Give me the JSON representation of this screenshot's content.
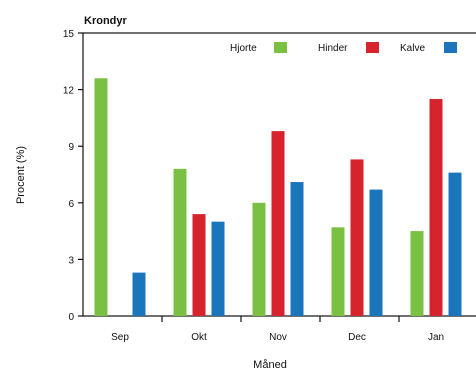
{
  "chart_data": {
    "type": "bar",
    "title": "Krondyr",
    "xlabel": "Måned",
    "ylabel": "Procent (%)",
    "categories": [
      "Sep",
      "Okt",
      "Nov",
      "Dec",
      "Jan"
    ],
    "ylim": [
      0,
      15
    ],
    "yticks": [
      0,
      3,
      6,
      9,
      12,
      15
    ],
    "grid": false,
    "legend_position": "top-right",
    "series": [
      {
        "name": "Hjorte",
        "color": "#7ac143",
        "values": [
          12.6,
          7.8,
          6.0,
          4.7,
          4.5
        ]
      },
      {
        "name": "Hinder",
        "color": "#d7232d",
        "values": [
          null,
          5.4,
          9.8,
          8.3,
          11.5
        ]
      },
      {
        "name": "Kalve",
        "color": "#1b75bb",
        "values": [
          2.3,
          5.0,
          7.1,
          6.7,
          7.6
        ]
      }
    ]
  }
}
